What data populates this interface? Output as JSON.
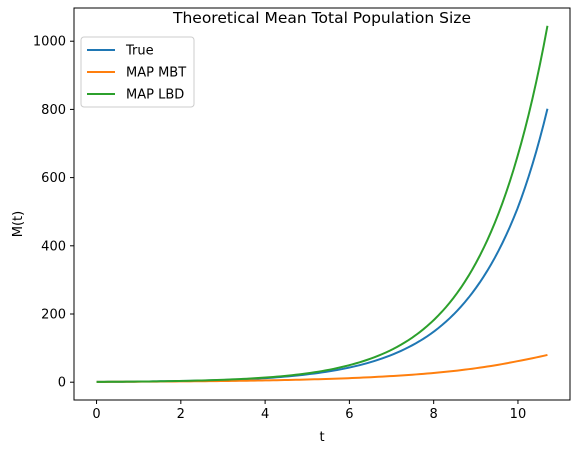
{
  "chart_data": {
    "type": "line",
    "title": "Theoretical Mean Total Population Size",
    "xlabel": "t",
    "ylabel": "M(t)",
    "xlim": [
      -0.535,
      11.235
    ],
    "ylim": [
      -52.2,
      1097.4
    ],
    "xticks": [
      0,
      2,
      4,
      6,
      8,
      10
    ],
    "yticks": [
      0,
      200,
      400,
      600,
      800,
      1000
    ],
    "grid": false,
    "legend_position": "top-left",
    "x": [
      0,
      1,
      2,
      3,
      4,
      5,
      6,
      7,
      8,
      9,
      10,
      10.7
    ],
    "series": [
      {
        "name": "True",
        "color": "#1f77b4",
        "values": [
          1,
          1.9,
          3.5,
          6.5,
          12,
          23,
          43,
          80,
          148,
          276,
          513,
          802
        ]
      },
      {
        "name": "MAP MBT",
        "color": "#ff7f0e",
        "values": [
          1,
          1.5,
          2.3,
          3.5,
          5.2,
          7.9,
          11.9,
          18,
          27,
          41,
          62,
          80
        ]
      },
      {
        "name": "MAP LBD",
        "color": "#2ca02c",
        "values": [
          1,
          1.9,
          3.7,
          7.1,
          13.6,
          26,
          50,
          95,
          182,
          349,
          667,
          1045
        ]
      }
    ]
  }
}
